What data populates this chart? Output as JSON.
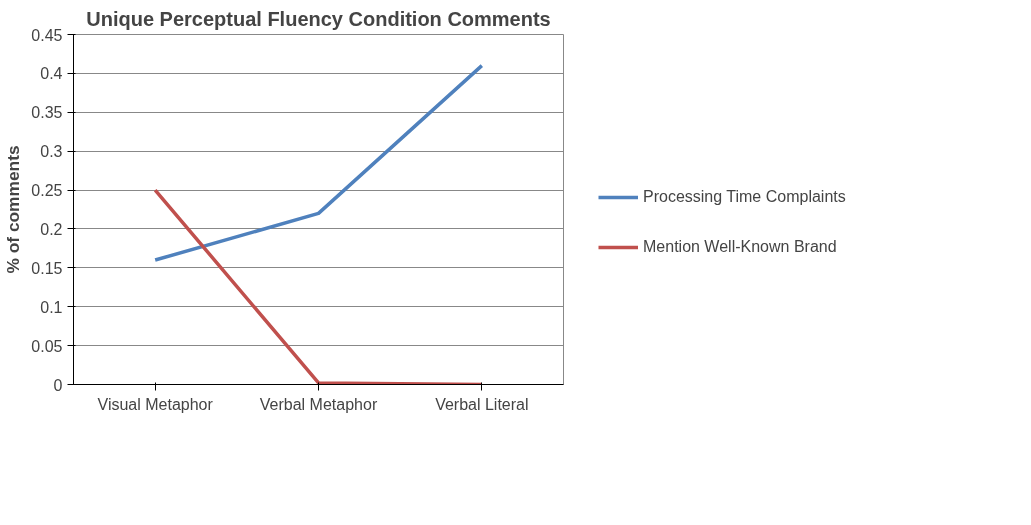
{
  "chart_data": {
    "type": "line",
    "title": "Unique Perceptual Fluency Condition Comments",
    "ylabel": "% of comments",
    "categories": [
      "Visual Metaphor",
      "Verbal Metaphor",
      "Verbal Literal"
    ],
    "series": [
      {
        "name": "Processing Time Complaints",
        "color": "#4f81bd",
        "values": [
          0.16,
          0.22,
          0.41
        ]
      },
      {
        "name": "Mention Well-Known Brand",
        "color": "#c0504d",
        "values": [
          0.25,
          0.002,
          0.0
        ]
      }
    ],
    "ylim": [
      0,
      0.45
    ],
    "yticks": [
      0,
      0.05,
      0.1,
      0.15,
      0.2,
      0.25,
      0.3,
      0.35,
      0.4,
      0.45
    ],
    "grid": "y",
    "legend": "right",
    "marker": "none",
    "line_style": "solid"
  }
}
